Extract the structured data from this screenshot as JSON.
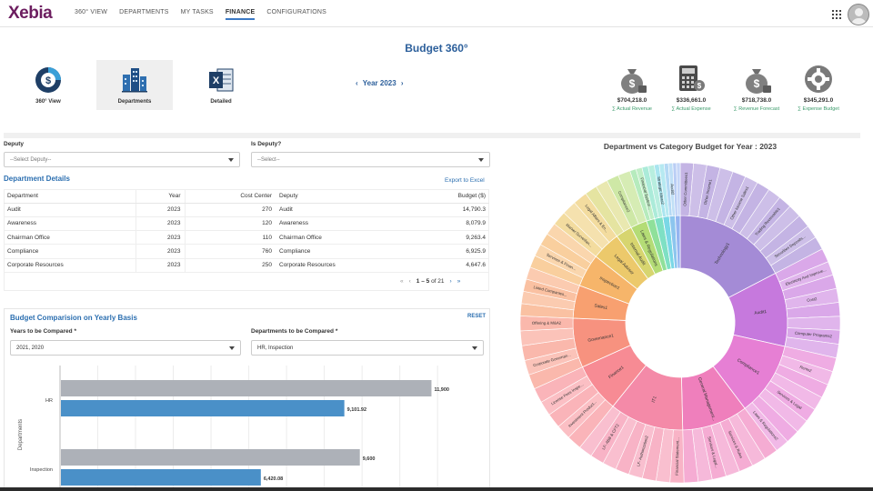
{
  "brand": {
    "logo_text": "Xebia"
  },
  "nav": {
    "items": [
      {
        "label": "360° VIEW",
        "active": false
      },
      {
        "label": "DEPARTMENTS",
        "active": false
      },
      {
        "label": "MY TASKS",
        "active": false
      },
      {
        "label": "FINANCE",
        "active": true
      },
      {
        "label": "CONFIGURATIONS",
        "active": false
      }
    ],
    "apps_icon": "grid-icon",
    "avatar_icon": "user-avatar-icon"
  },
  "page": {
    "title": "Budget 360°"
  },
  "views": [
    {
      "label": "360° View",
      "icon": "dollar-pie-icon",
      "active": false
    },
    {
      "label": "Departments",
      "icon": "buildings-icon",
      "active": true
    },
    {
      "label": "Detailed",
      "icon": "excel-icon",
      "active": false
    }
  ],
  "year_nav": {
    "prev": "‹",
    "label": "Year 2023",
    "next": "›"
  },
  "kpis": [
    {
      "value": "$704,218.0",
      "label": "∑ Actual Revenue",
      "icon": "money-bag-icon"
    },
    {
      "value": "$336,661.0",
      "label": "∑ Actual Expense",
      "icon": "calculator-icon"
    },
    {
      "value": "$718,738.0",
      "label": "∑ Revenue Forecast",
      "icon": "money-bag-icon"
    },
    {
      "value": "$345,291.0",
      "label": "∑ Expense Budget",
      "icon": "gear-icon"
    }
  ],
  "filters": {
    "deputy": {
      "label": "Deputy",
      "value": "--Select Deputy--"
    },
    "is_deputy": {
      "label": "Is Deputy?",
      "value": "--Select--"
    }
  },
  "dept_details": {
    "title": "Department Details",
    "export_label": "Export to Excel",
    "columns": [
      "Department",
      "Year",
      "Cost Center",
      "Deputy",
      "Budget ($)"
    ],
    "rows": [
      [
        "Audit",
        "2023",
        "270",
        "Audit",
        "14,790.3"
      ],
      [
        "Awareness",
        "2023",
        "120",
        "Awareness",
        "8,079.9"
      ],
      [
        "Chairman Office",
        "2023",
        "110",
        "Chairman Office",
        "9,263.4"
      ],
      [
        "Compliance",
        "2023",
        "760",
        "Compliance",
        "6,925.9"
      ],
      [
        "Corporate Resources",
        "2023",
        "250",
        "Corporate Resources",
        "4,647.6"
      ]
    ],
    "pager": {
      "first": "«",
      "prev": "‹",
      "range": "1 – 5",
      "of": "of 21",
      "next": "›",
      "last": "»"
    }
  },
  "comparison": {
    "title": "Budget Comparision on Yearly Basis",
    "reset_label": "RESET",
    "years_label": "Years to be Compared *",
    "years_value": "2021, 2020",
    "depts_label": "Departments to be Compared *",
    "depts_value": "HR, Inspection",
    "y_axis_label": "Departments"
  },
  "chart_data": [
    {
      "type": "bar",
      "orientation": "horizontal",
      "ylabel": "Departments",
      "categories": [
        "HR",
        "Inspection"
      ],
      "series": [
        {
          "values": [
            11900,
            9600
          ],
          "color": "#adb1b8"
        },
        {
          "values": [
            9101.92,
            6420.08
          ],
          "color": "#4a90c8"
        }
      ],
      "data_labels": [
        [
          "11,900",
          "9,101.92"
        ],
        [
          "9,600",
          "6,420.08"
        ]
      ],
      "xlim": [
        0,
        12500
      ],
      "grid": true
    },
    {
      "type": "sunburst",
      "title": "Department vs Category Budget for Year : 2023",
      "inner": [
        {
          "label": "Technology1",
          "value": 14,
          "color": "#a48bd6"
        },
        {
          "label": "Audit1",
          "value": 9,
          "color": "#c679dd"
        },
        {
          "label": "Compliance1",
          "value": 9,
          "color": "#e67fd4"
        },
        {
          "label": "General Management...",
          "value": 8,
          "color": "#ef7fbc"
        },
        {
          "label": "IT1",
          "value": 9,
          "color": "#f48aa8"
        },
        {
          "label": "Finance1",
          "value": 6,
          "color": "#f78b94"
        },
        {
          "label": "Governance1",
          "value": 6,
          "color": "#f7927f"
        },
        {
          "label": "Sales1",
          "value": 4,
          "color": "#f8a070"
        },
        {
          "label": "Inspection1",
          "value": 4,
          "color": "#f6b56a"
        },
        {
          "label": "Legal Advisor",
          "value": 3.5,
          "color": "#ecc96b"
        },
        {
          "label": "Internal Audit",
          "value": 2,
          "color": "#d7d56f"
        },
        {
          "label": "Laws & Regulations",
          "value": 2,
          "color": "#b4dc76"
        },
        {
          "label": "Awareness",
          "value": 1,
          "color": "#8fe09a"
        },
        {
          "label": "Chairman Office",
          "value": 1,
          "color": "#7ee0c4"
        },
        {
          "label": "Corporate Resources",
          "value": 0.8,
          "color": "#7ad7e6"
        },
        {
          "label": "Deputy Office",
          "value": 0.7,
          "color": "#8cc5ee"
        },
        {
          "label": "Risk",
          "value": 0.6,
          "color": "#95b4f0"
        }
      ],
      "outer_labels": [
        "Other Committees1",
        "Other Income1",
        "Other Income Sales1",
        "Trading Receivable1",
        "Securities Deposits...",
        "Electricity And Improve...",
        "Cost2",
        "Computer Programs2",
        "Rents2",
        "Services & Legal",
        "Laws & Regulations2",
        "Services & Rules",
        "Services & Legal...",
        "Financial Statement...",
        "LF- Authorization2",
        "LF- ABB & CFT2",
        "Investment Product...",
        "License Fees Inspe...",
        "Corporate Governan...",
        "Offering & M&A2",
        "Listed Companies...",
        "Services & Finan...",
        "Market Surveillan...",
        "Legal Affairs & En...",
        "Compliance2",
        "Financial System...",
        "Strategic Ideas2",
        "Audit2"
      ]
    }
  ]
}
